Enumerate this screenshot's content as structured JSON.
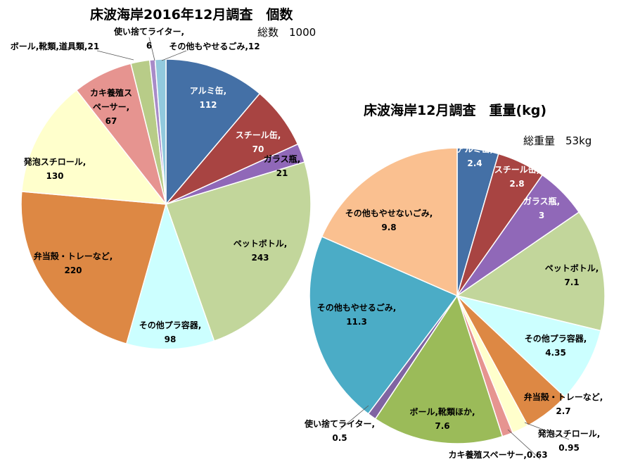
{
  "chart_data": [
    {
      "type": "pie",
      "title": "床波海岸2016年12月調査　個数",
      "subtitle": "総数　1000",
      "slices": [
        {
          "label": "アルミ缶,",
          "value": 112,
          "color": "#4470A6"
        },
        {
          "label": "スチール缶,",
          "value": 70,
          "color": "#A84442"
        },
        {
          "label": "ガラス瓶,",
          "value": 21,
          "color": "#9068B8"
        },
        {
          "label": "ペットボトル,",
          "value": 243,
          "color": "#C2D69B"
        },
        {
          "label": "その他プラ容器,",
          "value": 98,
          "color": "#CCFFFF"
        },
        {
          "label": "弁当殻・トレーなど,",
          "value": 220,
          "color": "#DD8844"
        },
        {
          "label": "発泡スチロール,",
          "value": 130,
          "color": "#FFFFCC"
        },
        {
          "label": "カキ養殖ス ペーサー,",
          "value": 67,
          "color": "#E69490"
        },
        {
          "label": "ボール,靴類,道具類,",
          "value": 21,
          "color": "#B8CC88"
        },
        {
          "label": "使い捨てライター,",
          "value": 6,
          "color": "#A88BC8"
        },
        {
          "label": "その他もやせるごみ,",
          "value": 12,
          "color": "#92C9DD"
        }
      ]
    },
    {
      "type": "pie",
      "title": "床波海岸12月調査　重量(kg)",
      "subtitle": "総重量　53kg",
      "slices": [
        {
          "label": "アルミ缶,",
          "value": 2.4,
          "color": "#4470A6"
        },
        {
          "label": "スチール缶,",
          "value": 2.8,
          "color": "#A84442"
        },
        {
          "label": "ガラス瓶,",
          "value": 3,
          "color": "#9068B8"
        },
        {
          "label": "ペットボトル,",
          "value": 7.1,
          "color": "#C2D69B"
        },
        {
          "label": "その他プラ容器,",
          "value": 4.35,
          "color": "#CCFFFF"
        },
        {
          "label": "弁当殻・トレーなど,",
          "value": 2.7,
          "color": "#DD8844"
        },
        {
          "label": "発泡スチロール,",
          "value": 0.95,
          "color": "#FFFFCC"
        },
        {
          "label": "カキ養殖スペーサー,",
          "value": 0.63,
          "color": "#E69490"
        },
        {
          "label": "ボール,靴類ほか,",
          "value": 7.6,
          "color": "#9BBB59"
        },
        {
          "label": "使い捨てライター,",
          "value": 0.5,
          "color": "#8064A2"
        },
        {
          "label": "その他もやせるごみ,",
          "value": 11.3,
          "color": "#4BACC6"
        },
        {
          "label": "その他もやせないごみ,",
          "value": 9.8,
          "color": "#FAC090"
        }
      ]
    }
  ]
}
